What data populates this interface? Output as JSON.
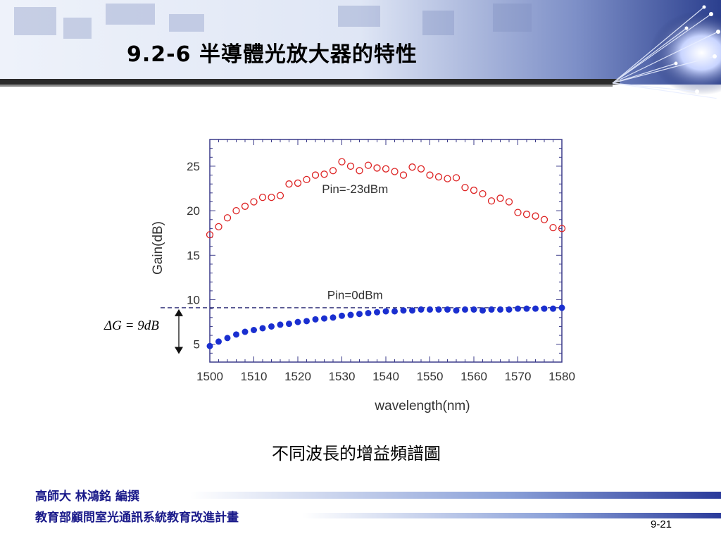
{
  "slide": {
    "title": "9.2-6 半導體光放大器的特性",
    "caption": "不同波長的增益頻譜圖",
    "footer_line1": "高師大    林鴻銘 編撰",
    "footer_line2": "教育部顧問室光通訊系統教育改進計畫",
    "page_number": "9-21"
  },
  "chart_data": {
    "type": "scatter",
    "xlabel": "wavelength(nm)",
    "ylabel": "Gain(dB)",
    "xlim": [
      1500,
      1580
    ],
    "ylim": [
      3,
      28
    ],
    "xticks": [
      1500,
      1510,
      1520,
      1530,
      1540,
      1550,
      1560,
      1570,
      1580
    ],
    "yticks": [
      5,
      10,
      15,
      20,
      25
    ],
    "annotation_delta": "ΔG = 9dB",
    "dashed_level": 9.1,
    "dashed_level_low": 4.7,
    "series": [
      {
        "name": "Pin=-23dBm",
        "marker": "open-circle",
        "color": "#dd2222",
        "x": [
          1500,
          1502,
          1504,
          1506,
          1508,
          1510,
          1512,
          1514,
          1516,
          1518,
          1520,
          1522,
          1524,
          1526,
          1528,
          1530,
          1532,
          1534,
          1536,
          1538,
          1540,
          1542,
          1544,
          1546,
          1548,
          1550,
          1552,
          1554,
          1556,
          1558,
          1560,
          1562,
          1564,
          1566,
          1568,
          1570,
          1572,
          1574,
          1576,
          1578,
          1580
        ],
        "y": [
          17.3,
          18.2,
          19.2,
          20.0,
          20.5,
          21.0,
          21.5,
          21.5,
          21.7,
          23.0,
          23.1,
          23.5,
          24.0,
          24.1,
          24.5,
          25.5,
          25.0,
          24.5,
          25.1,
          24.8,
          24.7,
          24.4,
          24.0,
          24.9,
          24.7,
          24.0,
          23.8,
          23.6,
          23.7,
          22.6,
          22.3,
          21.9,
          21.1,
          21.4,
          21.0,
          19.8,
          19.6,
          19.4,
          19.0,
          18.1,
          18.0
        ]
      },
      {
        "name": "Pin=0dBm",
        "marker": "filled-circle",
        "color": "#1a2fd0",
        "x": [
          1500,
          1502,
          1504,
          1506,
          1508,
          1510,
          1512,
          1514,
          1516,
          1518,
          1520,
          1522,
          1524,
          1526,
          1528,
          1530,
          1532,
          1534,
          1536,
          1538,
          1540,
          1542,
          1544,
          1546,
          1548,
          1550,
          1552,
          1554,
          1556,
          1558,
          1560,
          1562,
          1564,
          1566,
          1568,
          1570,
          1572,
          1574,
          1576,
          1578,
          1580
        ],
        "y": [
          4.8,
          5.3,
          5.7,
          6.1,
          6.4,
          6.6,
          6.8,
          7.0,
          7.2,
          7.3,
          7.5,
          7.6,
          7.8,
          7.9,
          8.0,
          8.2,
          8.3,
          8.4,
          8.5,
          8.6,
          8.7,
          8.7,
          8.8,
          8.8,
          8.9,
          8.9,
          8.9,
          8.9,
          8.8,
          8.9,
          8.9,
          8.8,
          8.9,
          8.9,
          8.9,
          9.0,
          9.0,
          9.0,
          9.0,
          9.0,
          9.1
        ]
      }
    ],
    "labels": [
      {
        "text": "Pin=-23dBm",
        "x": 1533,
        "y": 22.0
      },
      {
        "text": "Pin=0dBm",
        "x": 1533,
        "y": 10.1
      }
    ]
  }
}
